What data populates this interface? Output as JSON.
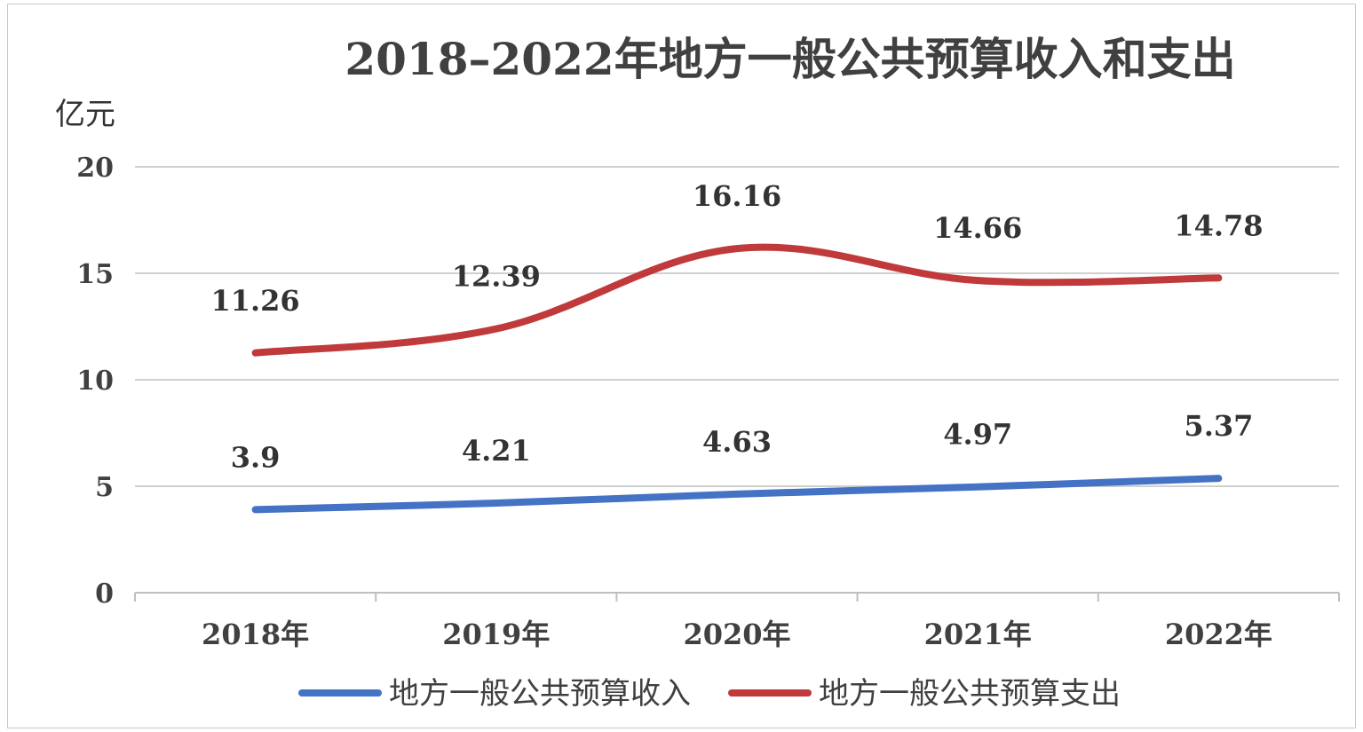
{
  "chart_data": {
    "type": "line",
    "title": "2018–2022年地方一般公共预算收入和支出",
    "ylabel": "亿元",
    "xlabel": "",
    "categories": [
      "2018年",
      "2019年",
      "2020年",
      "2021年",
      "2022年"
    ],
    "ylim": [
      0,
      20
    ],
    "yticks": [
      "0",
      "5",
      "10",
      "15",
      "20"
    ],
    "grid": true,
    "legend_position": "bottom",
    "series": [
      {
        "name": "地方一般公共预算收入",
        "values": [
          3.9,
          4.21,
          4.63,
          4.97,
          5.37
        ],
        "labels": [
          "3.9",
          "4.21",
          "4.63",
          "4.97",
          "5.37"
        ],
        "color": "#4472c4"
      },
      {
        "name": "地方一般公共预算支出",
        "values": [
          11.26,
          12.39,
          16.16,
          14.66,
          14.78
        ],
        "labels": [
          "11.26",
          "12.39",
          "16.16",
          "14.66",
          "14.78"
        ],
        "color": "#c0393b"
      }
    ]
  }
}
